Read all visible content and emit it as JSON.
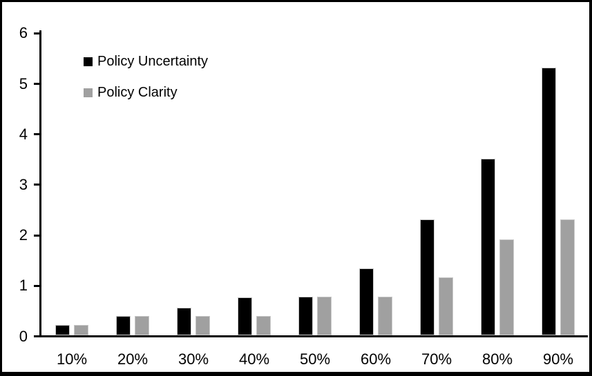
{
  "chart_data": {
    "type": "bar",
    "title": "",
    "xlabel": "",
    "ylabel": "",
    "categories": [
      "10%",
      "20%",
      "30%",
      "40%",
      "50%",
      "60%",
      "70%",
      "80%",
      "90%"
    ],
    "series": [
      {
        "name": "Policy Uncertainty",
        "color": "#000000",
        "values": [
          0.2,
          0.38,
          0.55,
          0.75,
          0.77,
          1.32,
          2.3,
          3.5,
          5.3
        ]
      },
      {
        "name": "Policy Clarity",
        "color": "#a0a0a0",
        "values": [
          0.2,
          0.38,
          0.38,
          0.38,
          0.77,
          0.77,
          1.15,
          1.9,
          2.3
        ]
      }
    ],
    "ylim": [
      0,
      6
    ],
    "yticks": [
      0,
      1,
      2,
      3,
      4,
      5,
      6
    ],
    "grid": false,
    "legend_position": "top-left-inside",
    "colors": {
      "bar_border": "#c9c9c9",
      "axis": "#000000",
      "background": "#ffffff",
      "frame_border": "#000000"
    }
  }
}
